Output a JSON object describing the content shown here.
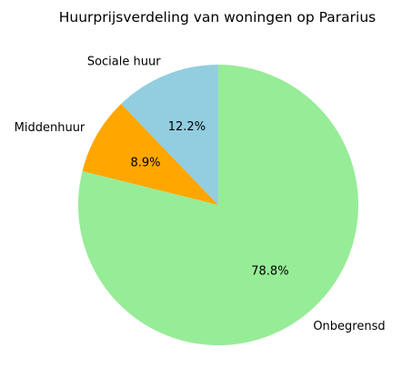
{
  "chart_data": {
    "type": "pie",
    "title": "Huurprijsverdeling van woningen op Pararius",
    "slices": [
      {
        "label": "Sociale huur",
        "value": 12.2,
        "pct_label": "12.2%",
        "color": "#92cde0"
      },
      {
        "label": "Middenhuur",
        "value": 8.9,
        "pct_label": "8.9%",
        "color": "#ffa600"
      },
      {
        "label": "Onbegrensd",
        "value": 78.8,
        "pct_label": "78.8%",
        "color": "#97ec97"
      }
    ],
    "start_angle_deg": 90,
    "direction": "counterclockwise"
  }
}
